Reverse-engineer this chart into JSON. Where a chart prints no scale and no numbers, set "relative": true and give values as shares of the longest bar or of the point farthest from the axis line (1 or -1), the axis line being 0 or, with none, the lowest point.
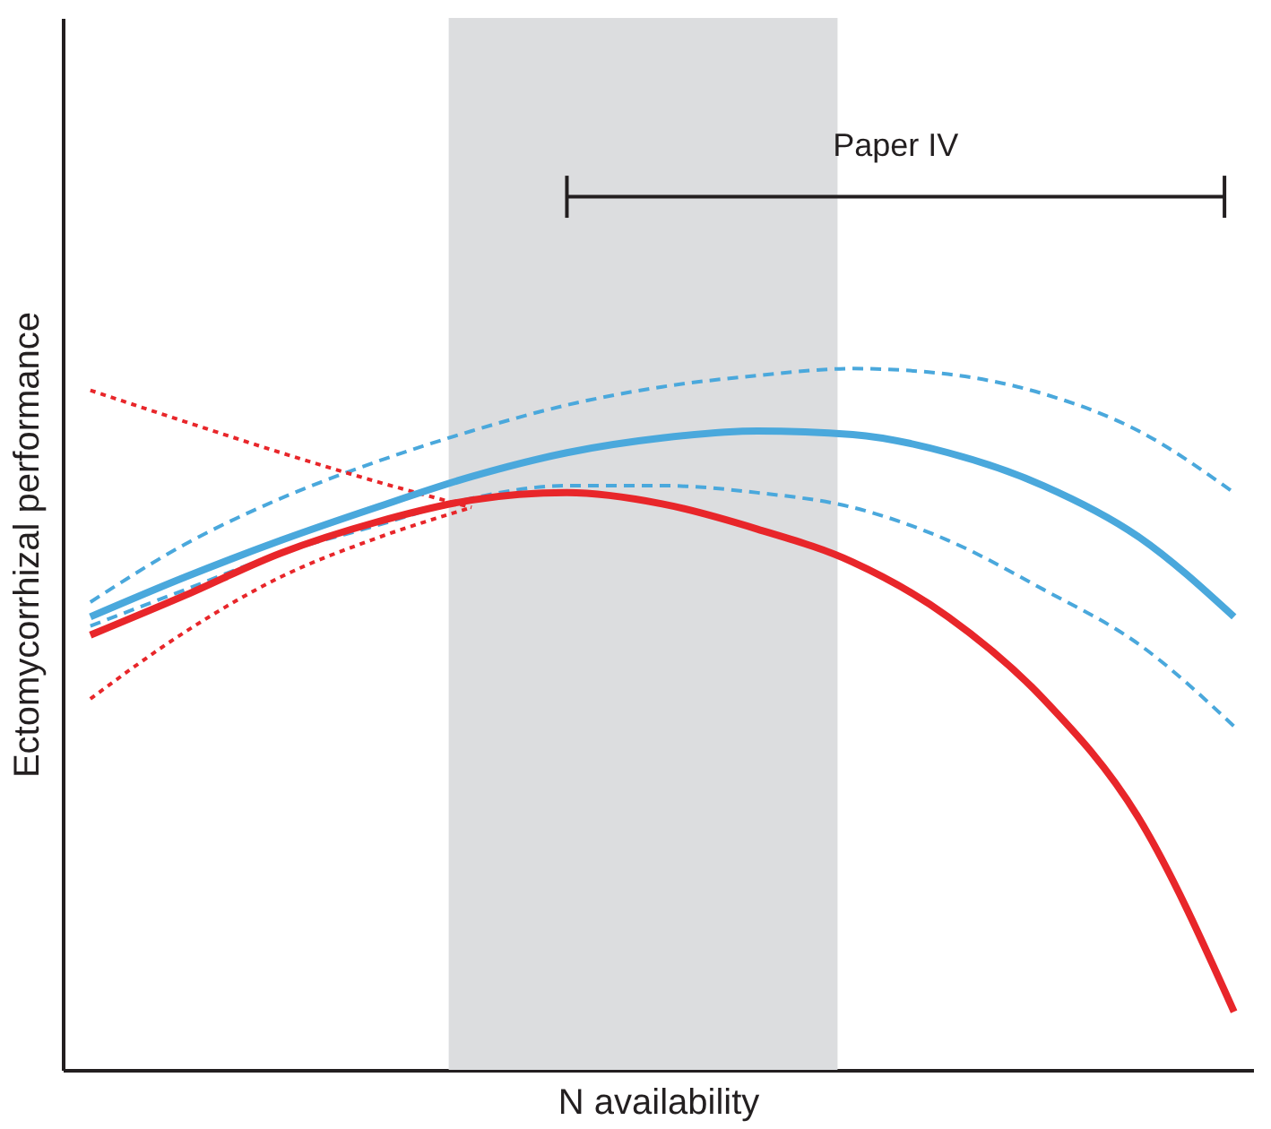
{
  "chart_data": {
    "type": "line",
    "relative": true,
    "xlabel": "N availability",
    "ylabel": "Ectomycorrhizal performance",
    "categories": [
      null,
      null,
      null,
      null,
      null,
      null,
      null,
      null,
      null,
      null,
      null,
      null,
      null
    ],
    "series": [
      {
        "color": "#4aa8dc",
        "line_style": "dashed",
        "values": [
          0.667,
          0.75,
          0.815,
          0.867,
          0.911,
          0.948,
          0.974,
          0.99,
          1.0,
          0.992,
          0.964,
          0.911,
          0.823
        ]
      },
      {
        "color": "#4aa8dc",
        "line_style": "dashed",
        "values": [
          0.633,
          0.685,
          0.737,
          0.776,
          0.815,
          0.833,
          0.833,
          0.823,
          0.802,
          0.755,
          0.685,
          0.607,
          0.49
        ]
      },
      {
        "color": "#e8262a",
        "line_style": "dotted",
        "values": [
          0.969,
          0.924,
          0.88,
          0.839,
          0.802,
          null,
          null,
          null,
          null,
          null,
          null,
          null,
          null
        ]
      },
      {
        "color": "#e8262a",
        "line_style": "dotted",
        "values": [
          0.529,
          0.625,
          0.703,
          0.758,
          0.802,
          null,
          null,
          null,
          null,
          null,
          null,
          null,
          null
        ]
      },
      {
        "color": "#4aa8dc",
        "line_style": "solid",
        "values": [
          0.646,
          0.703,
          0.755,
          0.802,
          0.846,
          0.88,
          0.901,
          0.911,
          0.906,
          0.88,
          0.833,
          0.76,
          0.646
        ]
      },
      {
        "color": "#e8262a",
        "line_style": "solid",
        "values": [
          0.62,
          0.677,
          0.737,
          0.781,
          0.8125,
          0.823,
          0.807,
          0.771,
          0.724,
          0.646,
          0.529,
          0.359,
          0.083
        ]
      }
    ],
    "annotations": [
      "Paper IV"
    ],
    "tick_labels": false
  }
}
